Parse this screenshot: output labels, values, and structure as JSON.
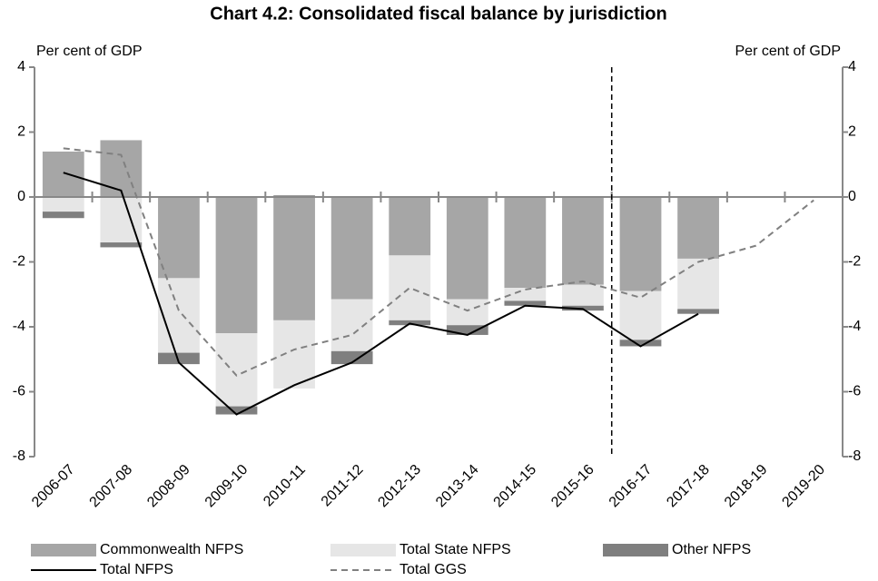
{
  "chart_data": {
    "type": "bar",
    "title": "Chart 4.2: Consolidated fiscal balance by jurisdiction",
    "y_label": "Per cent of GDP",
    "y2_label": "Per cent of GDP",
    "categories": [
      "2006-07",
      "2007-08",
      "2008-09",
      "2009-10",
      "2010-11",
      "2011-12",
      "2012-13",
      "2013-14",
      "2014-15",
      "2015-16",
      "2016-17",
      "2017-18",
      "2018-19",
      "2019-20"
    ],
    "series": [
      {
        "name": "Commonwealth NFPS",
        "mark": "bar",
        "color": "#a6a6a6",
        "values": [
          1.4,
          1.75,
          -2.5,
          -4.2,
          -3.8,
          -3.15,
          -1.8,
          -3.15,
          -2.8,
          -2.7,
          -2.9,
          -1.9,
          null,
          null
        ]
      },
      {
        "name": "Total State NFPS",
        "mark": "bar",
        "color": "#e6e6e6",
        "values": [
          -0.45,
          -1.4,
          -2.3,
          -2.25,
          -2.1,
          -1.6,
          -2.0,
          -0.8,
          -0.4,
          -0.65,
          -1.5,
          -1.55,
          null,
          null
        ]
      },
      {
        "name": "Other NFPS",
        "mark": "bar",
        "color": "#7f7f7f",
        "values": [
          -0.2,
          -0.15,
          -0.35,
          -0.25,
          0.05,
          -0.4,
          -0.15,
          -0.3,
          -0.15,
          -0.15,
          -0.2,
          -0.15,
          null,
          null
        ]
      },
      {
        "name": "Total NFPS",
        "mark": "line",
        "color": "#000000",
        "dashed": false,
        "values": [
          0.75,
          0.2,
          -5.1,
          -6.7,
          -5.8,
          -5.1,
          -3.9,
          -4.25,
          -3.35,
          -3.45,
          -4.6,
          -3.6,
          null,
          null
        ]
      },
      {
        "name": "Total GGS",
        "mark": "line",
        "color": "#808080",
        "dashed": true,
        "values": [
          1.5,
          1.3,
          -3.5,
          -5.5,
          -4.7,
          -4.25,
          -2.8,
          -3.5,
          -2.85,
          -2.6,
          -3.1,
          -2.0,
          -1.5,
          -0.1
        ]
      }
    ],
    "ylim": [
      -8,
      4
    ],
    "yticks": [
      -8,
      -6,
      -4,
      -2,
      0,
      2,
      4
    ],
    "y2lim": [
      -8,
      4
    ],
    "y2ticks": [
      -8,
      -6,
      -4,
      -2,
      0,
      2,
      4
    ],
    "grid": false
  }
}
